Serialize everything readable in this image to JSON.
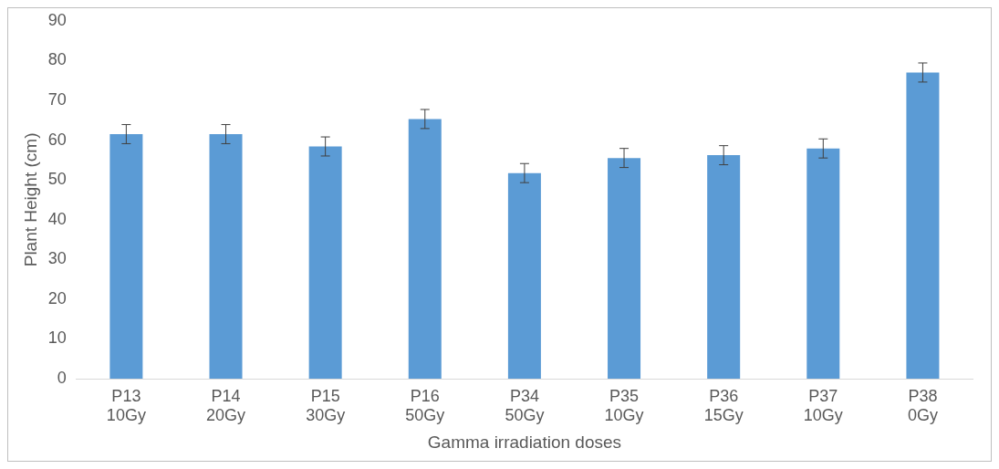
{
  "chart_data": {
    "type": "bar",
    "xlabel": "Gamma irradiation doses",
    "ylabel": "Plant Height (cm)",
    "categories": [
      "P13 10Gy",
      "P14 20Gy",
      "P15 30Gy",
      "P16 50Gy",
      "P34 50Gy",
      "P35 10Gy",
      "P36 15Gy",
      "P37 10Gy",
      "P38 0Gy"
    ],
    "values": [
      61.5,
      61.5,
      58.4,
      65.3,
      51.7,
      55.5,
      56.2,
      57.9,
      77.0
    ],
    "errors": [
      2.4,
      2.4,
      2.4,
      2.4,
      2.4,
      2.4,
      2.4,
      2.4,
      2.4
    ],
    "color": "#5b9bd5",
    "ylim": [
      0,
      90
    ],
    "yticks": [
      0,
      10,
      20,
      30,
      40,
      50,
      60,
      70,
      80,
      90
    ],
    "grid": false,
    "legend": false
  }
}
